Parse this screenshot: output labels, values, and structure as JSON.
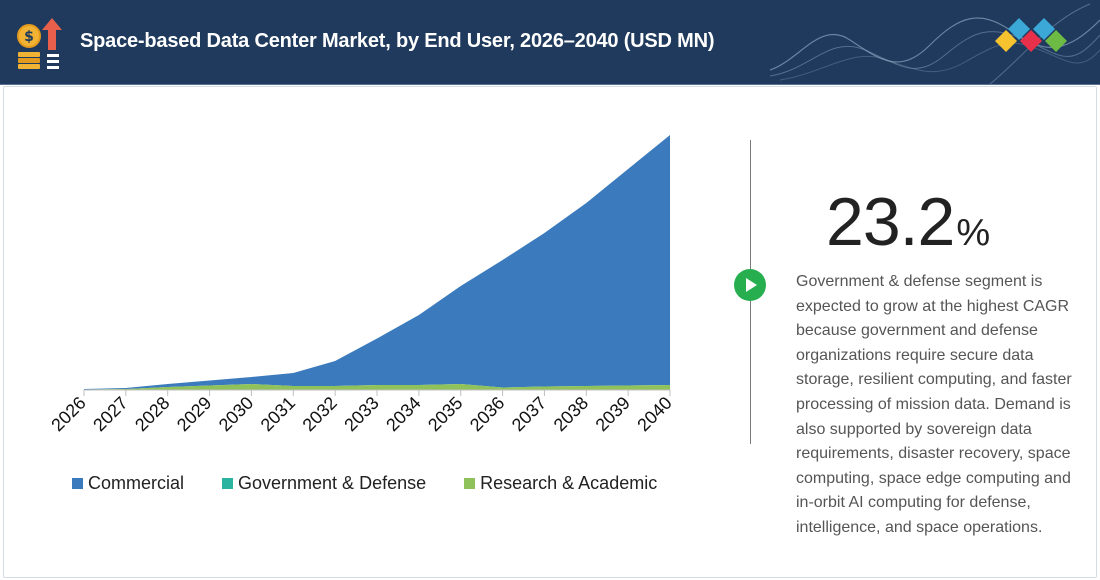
{
  "header": {
    "title": "Space-based Data Center Market, by End User, 2026–2040 (USD MN)"
  },
  "icons": {
    "header_icon": "coins-arrow-up-icon",
    "brand_logo": "diamond-cluster-logo",
    "callout": "play-icon"
  },
  "colors": {
    "header_bg": "#1f3a5c",
    "commercial": "#3b7bbd",
    "government_defense": "#2bb5a0",
    "research_academic": "#8fc25a",
    "callout_green": "#27ae4f"
  },
  "chart_data": {
    "type": "area",
    "stacked": true,
    "x": [
      "2026",
      "2027",
      "2028",
      "2029",
      "2030",
      "2031",
      "2032",
      "2033",
      "2034",
      "2035",
      "2036",
      "2037",
      "2038",
      "2039",
      "2040"
    ],
    "series": [
      {
        "name": "Commercial",
        "color": "#3b7bbd",
        "values": [
          1,
          2,
          6,
          10,
          14,
          26,
          50,
          93,
          140,
          196,
          255,
          307,
          366,
          433,
          500
        ]
      },
      {
        "name": "Government & Defense",
        "color": "#2bb5a0",
        "values": [
          0,
          0,
          0,
          0,
          0,
          0,
          0,
          0,
          0,
          0,
          0,
          0,
          0,
          0,
          0
        ]
      },
      {
        "name": "Research & Academic",
        "color": "#8fc25a",
        "values": [
          1,
          2,
          6,
          9,
          12,
          8,
          8,
          10,
          10,
          12,
          5,
          7,
          8,
          9,
          10
        ]
      }
    ],
    "ylim": [
      0,
      500
    ],
    "grid": false,
    "y_axis_visible": false,
    "legend_position": "bottom"
  },
  "legend": {
    "items": [
      "Commercial",
      "Government & Defense",
      "Research & Academic"
    ]
  },
  "stat": {
    "value": "23.2",
    "unit": "%"
  },
  "description": "Government & defense segment is expected to grow at the highest CAGR because government and defense organizations require secure data storage, resilient computing, and faster processing of mission data. Demand is also supported by sovereign data requirements, disaster recovery, space computing, space edge computing and in-orbit AI computing for defense, intelligence, and space operations."
}
